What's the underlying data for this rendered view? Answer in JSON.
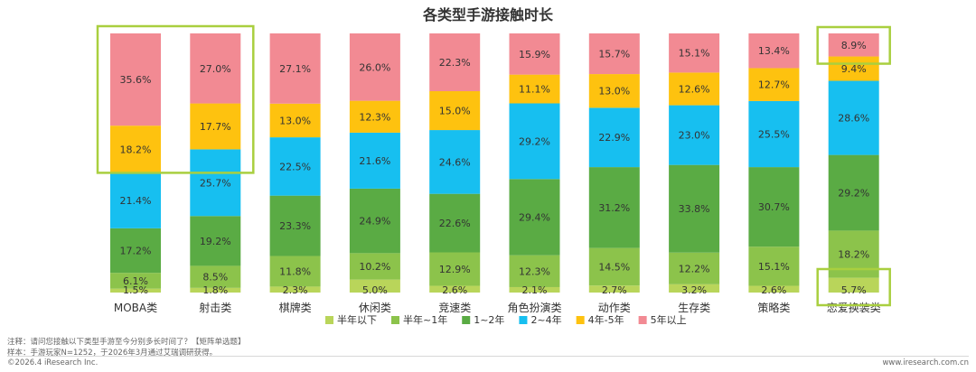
{
  "chart_data": {
    "type": "bar",
    "stacked": true,
    "title": "各类型手游接触时长",
    "xlabel": "",
    "ylabel": "",
    "ylim": [
      0,
      100
    ],
    "grid": false,
    "legend_position": "bottom",
    "categories": [
      "MOBA类",
      "射击类",
      "棋牌类",
      "休闲类",
      "竞速类",
      "角色扮演类",
      "动作类",
      "生存类",
      "策略类",
      "恋爱换装类"
    ],
    "series": [
      {
        "name": "半年以下",
        "color": "#b9d55a",
        "values": [
          1.5,
          1.8,
          2.3,
          5.0,
          2.6,
          2.1,
          2.7,
          3.2,
          2.6,
          5.7
        ]
      },
      {
        "name": "半年~1年",
        "color": "#8cc34b",
        "values": [
          6.1,
          8.5,
          11.8,
          10.2,
          12.9,
          12.3,
          14.5,
          12.2,
          15.1,
          18.2
        ]
      },
      {
        "name": "1~2年",
        "color": "#5aab44",
        "values": [
          17.2,
          19.2,
          23.3,
          24.9,
          22.6,
          29.4,
          31.2,
          33.8,
          30.7,
          29.2
        ]
      },
      {
        "name": "2~4年",
        "color": "#17bff0",
        "values": [
          21.4,
          25.7,
          22.5,
          21.6,
          24.6,
          29.2,
          22.9,
          23.0,
          25.5,
          28.6
        ]
      },
      {
        "name": "4年-5年",
        "color": "#fec20f",
        "values": [
          18.2,
          17.7,
          13.0,
          12.3,
          15.0,
          11.1,
          13.0,
          12.6,
          12.7,
          9.4
        ]
      },
      {
        "name": "5年以上",
        "color": "#f28a93",
        "values": [
          35.6,
          27.0,
          27.1,
          26.0,
          22.3,
          15.9,
          15.7,
          15.1,
          13.4,
          8.9
        ]
      }
    ],
    "highlight_color": "#a9cf3f"
  },
  "footnotes": {
    "note": "注释：请问您接触以下类型手游至今分别多长时间了？【矩阵单选题】",
    "sample": "样本：手游玩家N=1252，于2026年3月通过艾瑞调研获得。",
    "copyright": "©2026.4 iResearch Inc.",
    "website": "www.iresearch.com.cn"
  }
}
